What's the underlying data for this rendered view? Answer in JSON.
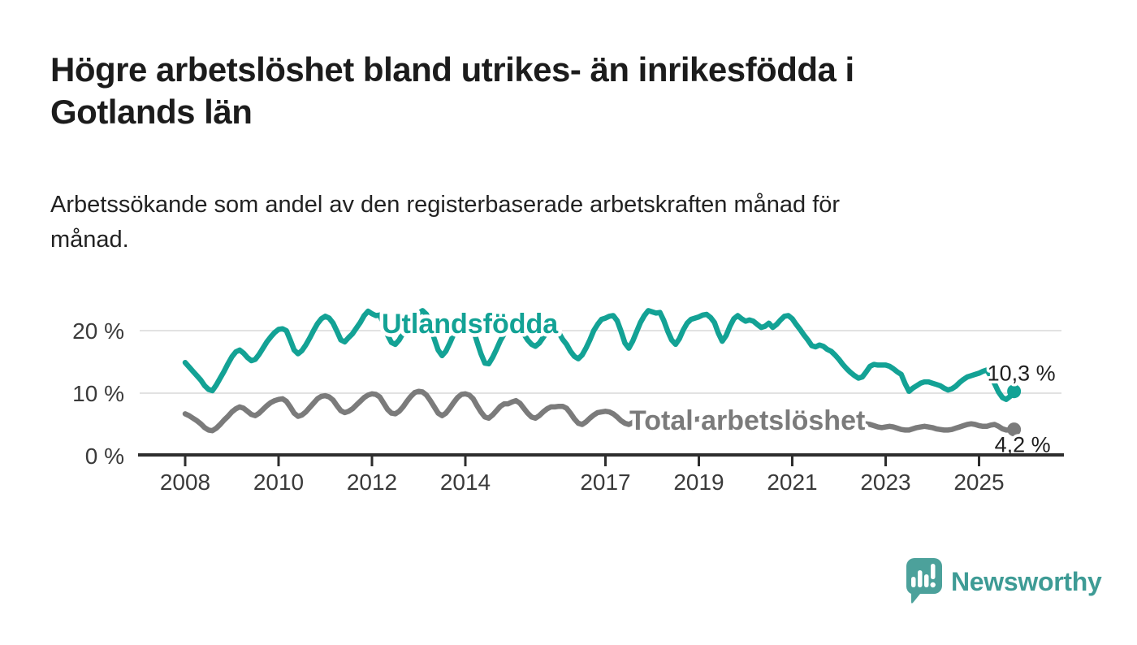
{
  "header": {
    "title_lines": [
      "Högre arbetslöshet bland utrikes- än inrikesfödda i",
      "Gotlands län"
    ],
    "subtitle_lines": [
      "Arbetssökande som andel av den registerbaserade arbetskraften månad för",
      "månad."
    ]
  },
  "chart_data": {
    "type": "line",
    "title": "Högre arbetslöshet bland utrikes- än inrikesfödda i Gotlands län",
    "subtitle": "Arbetssökande som andel av den registerbaserade arbetskraften månad för månad.",
    "x_unit": "month",
    "x_start_year": 2008,
    "x_end": "2025-10",
    "ylim": [
      0,
      24.5
    ],
    "grid": true,
    "y_ticks": [
      {
        "value": 20,
        "label": "20 %"
      },
      {
        "value": 10,
        "label": "10 %"
      },
      {
        "value": 0,
        "label": "0 %"
      }
    ],
    "x_ticks": [
      {
        "value": 2008,
        "label": "2008"
      },
      {
        "value": 2010,
        "label": "2010"
      },
      {
        "value": 2012,
        "label": "2012"
      },
      {
        "value": 2014,
        "label": "2014"
      },
      {
        "value": 2017,
        "label": "2017"
      },
      {
        "value": 2019,
        "label": "2019"
      },
      {
        "value": 2021,
        "label": "2021"
      },
      {
        "value": 2023,
        "label": "2023"
      },
      {
        "value": 2025,
        "label": "2025"
      }
    ],
    "series": [
      {
        "name": "Utlandsfödda",
        "color": "#13a295",
        "end_label": "10,3 %",
        "end_value": 10.3,
        "values": [
          14.9,
          14.2,
          13.5,
          12.8,
          12.1,
          11.2,
          10.6,
          10.4,
          11.3,
          12.4,
          13.5,
          14.7,
          15.8,
          16.6,
          16.9,
          16.4,
          15.7,
          15.2,
          15.4,
          16.2,
          17.2,
          18.2,
          19.0,
          19.7,
          20.2,
          20.3,
          20.0,
          18.5,
          16.9,
          16.3,
          16.8,
          17.7,
          18.8,
          20.0,
          21.1,
          21.9,
          22.3,
          22.0,
          21.2,
          19.9,
          18.5,
          18.2,
          18.9,
          19.5,
          20.4,
          21.3,
          22.4,
          23.1,
          22.7,
          22.4,
          22.5,
          21.0,
          19.3,
          18.1,
          17.8,
          18.5,
          19.6,
          20.7,
          21.6,
          22.3,
          22.8,
          23.2,
          22.6,
          20.8,
          18.7,
          16.9,
          16.0,
          16.7,
          18.0,
          19.4,
          20.5,
          21.3,
          21.7,
          21.3,
          20.2,
          18.2,
          16.3,
          14.8,
          14.7,
          15.7,
          17.0,
          18.4,
          19.5,
          20.3,
          20.8,
          21.0,
          20.5,
          19.5,
          18.5,
          17.8,
          17.5,
          18.0,
          18.9,
          19.8,
          20.4,
          20.4,
          19.7,
          18.6,
          17.8,
          16.7,
          15.9,
          15.5,
          16.1,
          17.2,
          18.5,
          20.0,
          21.0,
          21.8,
          22.0,
          22.3,
          22.4,
          21.6,
          19.9,
          18.0,
          17.2,
          18.3,
          19.8,
          21.3,
          22.4,
          23.2,
          23.0,
          22.8,
          22.9,
          21.6,
          19.9,
          18.5,
          17.8,
          18.7,
          20.1,
          21.2,
          21.8,
          22.0,
          22.2,
          22.5,
          22.6,
          22.1,
          21.3,
          19.6,
          18.3,
          19.2,
          20.7,
          21.9,
          22.4,
          21.9,
          21.5,
          21.7,
          21.5,
          21.0,
          20.5,
          20.7,
          21.2,
          20.5,
          21.0,
          21.7,
          22.3,
          22.4,
          21.9,
          21.0,
          20.2,
          19.3,
          18.5,
          17.6,
          17.4,
          17.7,
          17.5,
          17.0,
          16.7,
          16.1,
          15.4,
          14.6,
          13.9,
          13.3,
          12.8,
          12.4,
          12.6,
          13.4,
          14.3,
          14.6,
          14.5,
          14.5,
          14.5,
          14.3,
          13.9,
          13.4,
          13.0,
          11.5,
          10.3,
          10.8,
          11.2,
          11.6,
          11.8,
          11.8,
          11.6,
          11.4,
          11.2,
          10.8,
          10.5,
          10.7,
          11.1,
          11.7,
          12.2,
          12.6,
          12.8,
          13.0,
          13.2,
          13.5,
          13.7,
          12.7,
          11.5,
          10.2,
          9.3,
          9.0,
          9.5,
          10.3
        ]
      },
      {
        "name": "Total arbetslöshet",
        "color": "#7b7b7b",
        "end_label": "4,2 %",
        "end_value": 4.2,
        "values": [
          6.7,
          6.4,
          6.0,
          5.6,
          5.1,
          4.5,
          4.1,
          4.0,
          4.4,
          5.0,
          5.7,
          6.3,
          7.0,
          7.5,
          7.8,
          7.6,
          7.1,
          6.6,
          6.4,
          6.8,
          7.4,
          8.0,
          8.5,
          8.8,
          9.0,
          9.1,
          8.7,
          7.8,
          6.8,
          6.3,
          6.5,
          7.0,
          7.7,
          8.4,
          9.1,
          9.5,
          9.6,
          9.4,
          8.9,
          8.0,
          7.2,
          6.9,
          7.1,
          7.5,
          8.1,
          8.7,
          9.3,
          9.7,
          9.9,
          9.8,
          9.4,
          8.4,
          7.4,
          6.8,
          6.7,
          7.1,
          7.8,
          8.7,
          9.5,
          10.1,
          10.3,
          10.2,
          9.7,
          8.8,
          7.8,
          6.8,
          6.4,
          6.8,
          7.6,
          8.5,
          9.3,
          9.8,
          9.9,
          9.7,
          9.1,
          8.0,
          7.0,
          6.2,
          6.0,
          6.5,
          7.2,
          7.9,
          8.3,
          8.3,
          8.6,
          8.8,
          8.4,
          7.6,
          6.8,
          6.2,
          6.0,
          6.4,
          7.0,
          7.5,
          7.8,
          7.8,
          7.9,
          7.9,
          7.6,
          6.8,
          5.9,
          5.2,
          5.0,
          5.4,
          6.0,
          6.5,
          6.9,
          7.0,
          7.1,
          7.0,
          6.7,
          6.2,
          5.6,
          5.2,
          5.0,
          5.3,
          5.8,
          6.2,
          6.5,
          6.6,
          6.6,
          6.5,
          6.2,
          5.6,
          5.0,
          4.5,
          4.1,
          4.4,
          4.9,
          5.3,
          5.6,
          5.8,
          5.9,
          5.9,
          5.7,
          5.3,
          4.9,
          4.6,
          4.5,
          4.8,
          5.2,
          5.5,
          5.8,
          6.0,
          6.1,
          6.2,
          6.3,
          6.5,
          6.6,
          6.6,
          6.5,
          6.4,
          6.3,
          6.2,
          6.2,
          6.3,
          6.3,
          6.2,
          6.0,
          5.7,
          5.4,
          5.1,
          5.0,
          5.0,
          5.0,
          4.9,
          4.9,
          4.8,
          4.8,
          4.7,
          4.6,
          4.5,
          4.5,
          4.7,
          4.9,
          5.1,
          5.0,
          4.8,
          4.6,
          4.5,
          4.6,
          4.7,
          4.6,
          4.4,
          4.2,
          4.1,
          4.1,
          4.3,
          4.5,
          4.6,
          4.7,
          4.6,
          4.5,
          4.3,
          4.2,
          4.1,
          4.1,
          4.2,
          4.4,
          4.6,
          4.8,
          5.0,
          5.1,
          5.0,
          4.8,
          4.7,
          4.7,
          4.9,
          5.0,
          4.7,
          4.3,
          4.1,
          4.1,
          4.2
        ]
      }
    ],
    "legend_position": "inline-labels"
  },
  "footer": {
    "brand": "Newsworthy"
  },
  "colors": {
    "series_foreign_born": "#13a295",
    "series_total": "#7b7b7b",
    "gridline": "#d9d9d9",
    "axis": "#2d2d2d",
    "tick_label": "#3a3a3a",
    "annotation_text": "#1f1f1f",
    "title_text": "#1c1c1c",
    "logo": "#4ca19b",
    "logo_text": "#3e9b95",
    "background": "#ffffff"
  }
}
